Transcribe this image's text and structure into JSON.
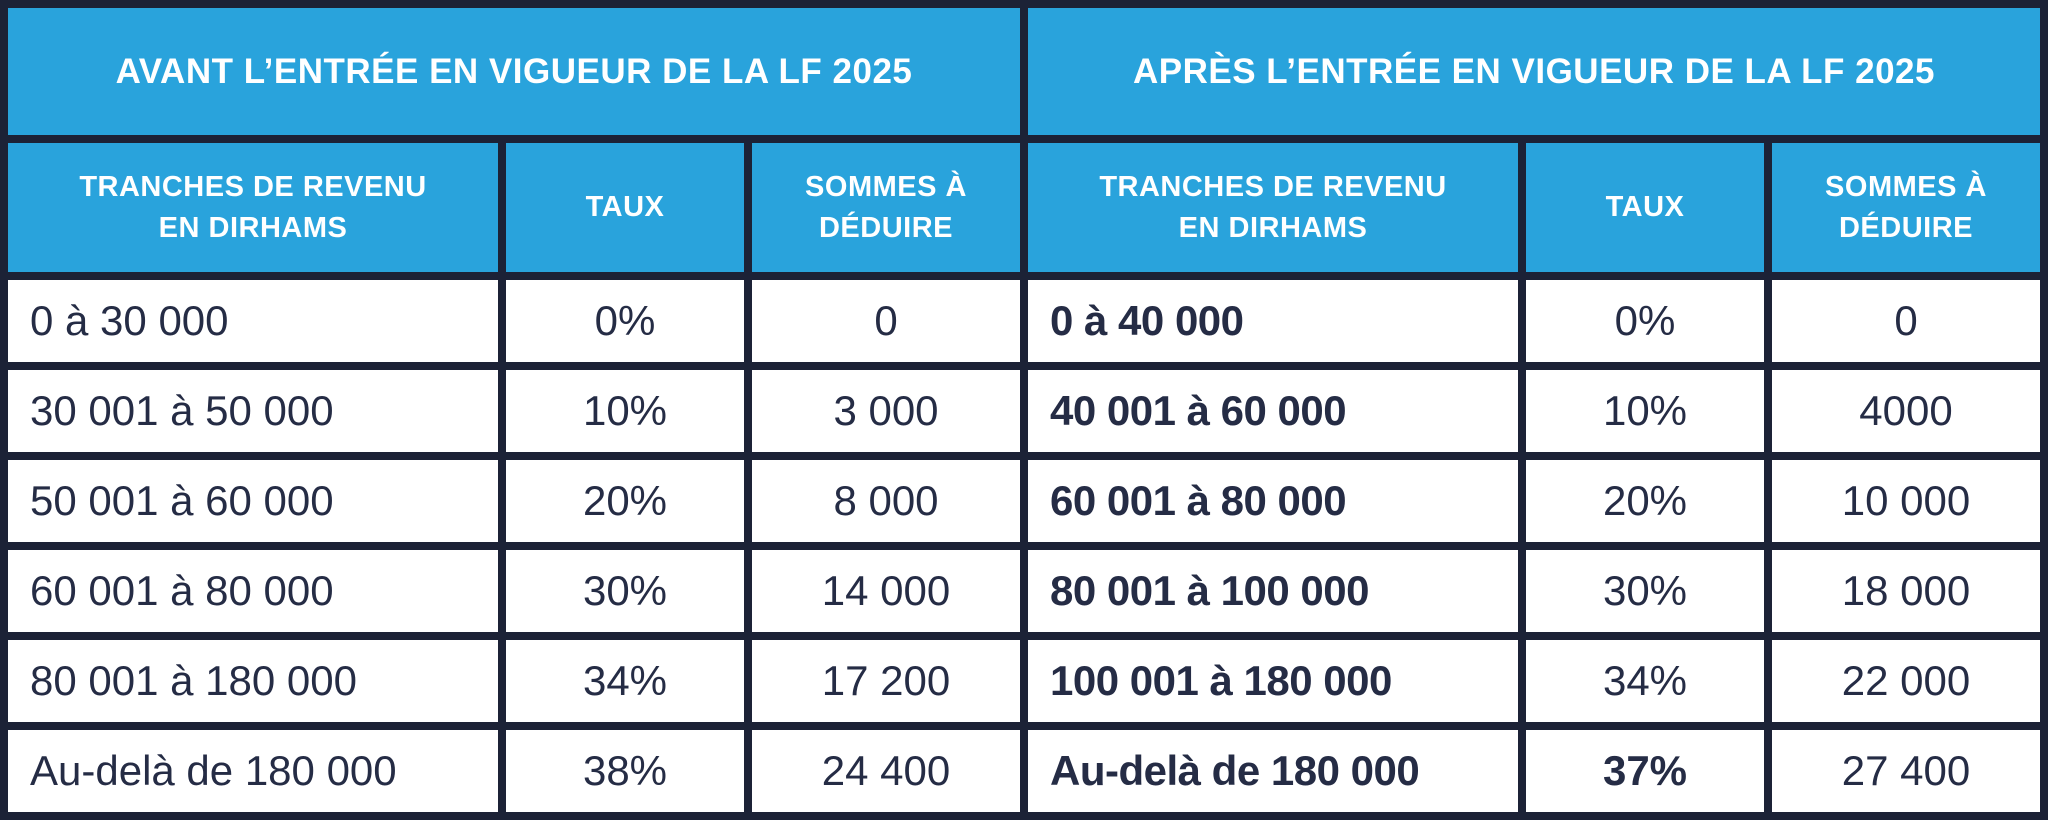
{
  "colors": {
    "header_blue": "#29A3DC",
    "border_navy": "#1C2236",
    "cell_background": "#FFFFFF",
    "header_text": "#FFFFFF",
    "cell_text": "#252C45"
  },
  "tables": [
    {
      "title": "AVANT L’ENTRÉE EN VIGUEUR DE LA LF 2025",
      "columns": [
        "TRANCHES DE REVENU\nEN DIRHAMS",
        "TAUX",
        "SOMMES À\nDÉDUIRE"
      ],
      "rows": [
        {
          "tranche": "0 à 30 000",
          "taux": "0%",
          "somme": "0"
        },
        {
          "tranche": "30 001 à 50 000",
          "taux": "10%",
          "somme": "3 000"
        },
        {
          "tranche": "50 001 à 60 000",
          "taux": "20%",
          "somme": "8 000"
        },
        {
          "tranche": "60 001 à 80 000",
          "taux": "30%",
          "somme": "14 000"
        },
        {
          "tranche": "80 001 à 180 000",
          "taux": "34%",
          "somme": "17 200"
        },
        {
          "tranche": "Au-delà de 180 000",
          "taux": "38%",
          "somme": "24 400"
        }
      ]
    },
    {
      "title": "APRÈS L’ENTRÉE EN VIGUEUR DE LA LF 2025",
      "columns": [
        "TRANCHES DE REVENU\nEN DIRHAMS",
        "TAUX",
        "SOMMES À\nDÉDUIRE"
      ],
      "rows": [
        {
          "tranche": "0 à 40 000",
          "taux": "0%",
          "somme": "0"
        },
        {
          "tranche": "40 001 à 60 000",
          "taux": "10%",
          "somme": "4000"
        },
        {
          "tranche": "60 001 à 80 000",
          "taux": "20%",
          "somme": "10 000"
        },
        {
          "tranche": "80 001 à 100 000",
          "taux": "30%",
          "somme": "18 000"
        },
        {
          "tranche": "100 001 à 180 000",
          "taux": "34%",
          "somme": "22 000"
        },
        {
          "tranche": "Au-delà de 180 000",
          "taux": "37%",
          "somme": "27 400"
        }
      ]
    }
  ],
  "chart_data": [
    {
      "type": "table",
      "title": "AVANT L’ENTRÉE EN VIGUEUR DE LA LF 2025",
      "columns": [
        "TRANCHES DE REVENU EN DIRHAMS",
        "TAUX",
        "SOMMES À DÉDUIRE"
      ],
      "rows": [
        [
          "0 à 30 000",
          "0%",
          "0"
        ],
        [
          "30 001 à 50 000",
          "10%",
          "3 000"
        ],
        [
          "50 001 à 60 000",
          "20%",
          "8 000"
        ],
        [
          "60 001 à 80 000",
          "30%",
          "14 000"
        ],
        [
          "80 001 à 180 000",
          "34%",
          "17 200"
        ],
        [
          "Au-delà de 180 000",
          "38%",
          "24 400"
        ]
      ]
    },
    {
      "type": "table",
      "title": "APRÈS L’ENTRÉE EN VIGUEUR DE LA LF 2025",
      "columns": [
        "TRANCHES DE REVENU EN DIRHAMS",
        "TAUX",
        "SOMMES À DÉDUIRE"
      ],
      "rows": [
        [
          "0 à 40 000",
          "0%",
          "0"
        ],
        [
          "40 001 à 60 000",
          "10%",
          "4000"
        ],
        [
          "60 001 à 80 000",
          "20%",
          "10 000"
        ],
        [
          "80 001 à 100 000",
          "30%",
          "18 000"
        ],
        [
          "100 001 à 180 000",
          "34%",
          "22 000"
        ],
        [
          "Au-delà de 180 000",
          "37%",
          "27 400"
        ]
      ]
    }
  ]
}
